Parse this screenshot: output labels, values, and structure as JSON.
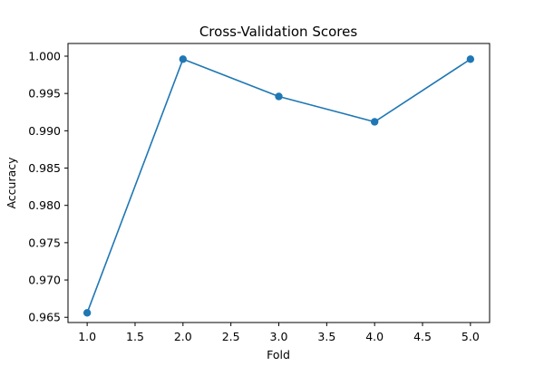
{
  "chart_data": {
    "type": "line",
    "title": "Cross-Validation Scores",
    "xlabel": "Fold",
    "ylabel": "Accuracy",
    "xlim": [
      0.8,
      5.2
    ],
    "ylim": [
      0.9643,
      1.0017
    ],
    "xticks": [
      1.0,
      1.5,
      2.0,
      2.5,
      3.0,
      3.5,
      4.0,
      4.5,
      5.0
    ],
    "xtick_labels": [
      "1.0",
      "1.5",
      "2.0",
      "2.5",
      "3.0",
      "3.5",
      "4.0",
      "4.5",
      "5.0"
    ],
    "yticks": [
      0.965,
      0.97,
      0.975,
      0.98,
      0.985,
      0.99,
      0.995,
      1.0
    ],
    "ytick_labels": [
      "0.965",
      "0.970",
      "0.975",
      "0.980",
      "0.985",
      "0.990",
      "0.995",
      "1.000"
    ],
    "grid": false,
    "legend": "none",
    "series": [
      {
        "x": [
          1,
          2,
          3,
          4,
          5
        ],
        "values": [
          0.9656,
          0.9996,
          0.9946,
          0.9912,
          0.9996
        ],
        "color": "#1f77b4",
        "marker": "circle"
      }
    ]
  }
}
